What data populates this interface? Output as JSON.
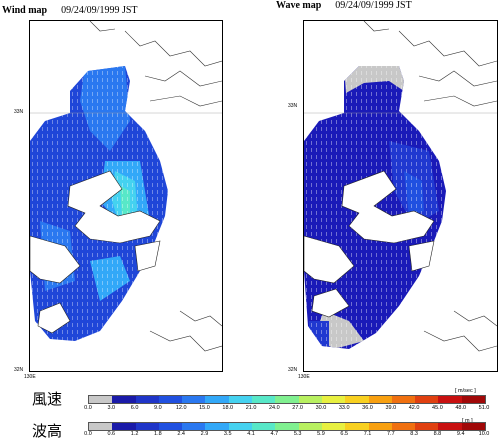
{
  "wind_panel": {
    "title": "Wind map",
    "date": "09/24/09/1999 JST"
  },
  "wave_panel": {
    "title": "Wave map",
    "date": "09/24/09/1999 JST"
  },
  "axis": {
    "lat_top": "33N",
    "lat_bottom": "32N",
    "lon_left": "130E"
  },
  "wind_legend": {
    "label": "風速",
    "unit": "[ m/sec ]",
    "ticks": [
      "0.0",
      "3.0",
      "6.0",
      "9.0",
      "12.0",
      "15.0",
      "18.0",
      "21.0",
      "24.0",
      "27.0",
      "30.0",
      "33.0",
      "36.0",
      "39.0",
      "42.0",
      "45.0",
      "48.0",
      "51.0"
    ]
  },
  "wave_legend": {
    "label": "波高",
    "unit": "[ m ]",
    "ticks": [
      "0.0",
      "0.6",
      "1.2",
      "1.8",
      "2.4",
      "2.9",
      "3.5",
      "4.1",
      "4.7",
      "5.3",
      "5.9",
      "6.5",
      "7.1",
      "7.7",
      "8.3",
      "8.8",
      "9.4",
      "10.0"
    ]
  },
  "colors": [
    "#c8c8c8",
    "#1a1aa8",
    "#1f35c8",
    "#2050e0",
    "#2a78f0",
    "#32a8f8",
    "#45d2f0",
    "#58e8c8",
    "#80f090",
    "#b8f060",
    "#e8f040",
    "#f8d020",
    "#f8a010",
    "#f07010",
    "#e04010",
    "#c81010",
    "#a00808"
  ]
}
